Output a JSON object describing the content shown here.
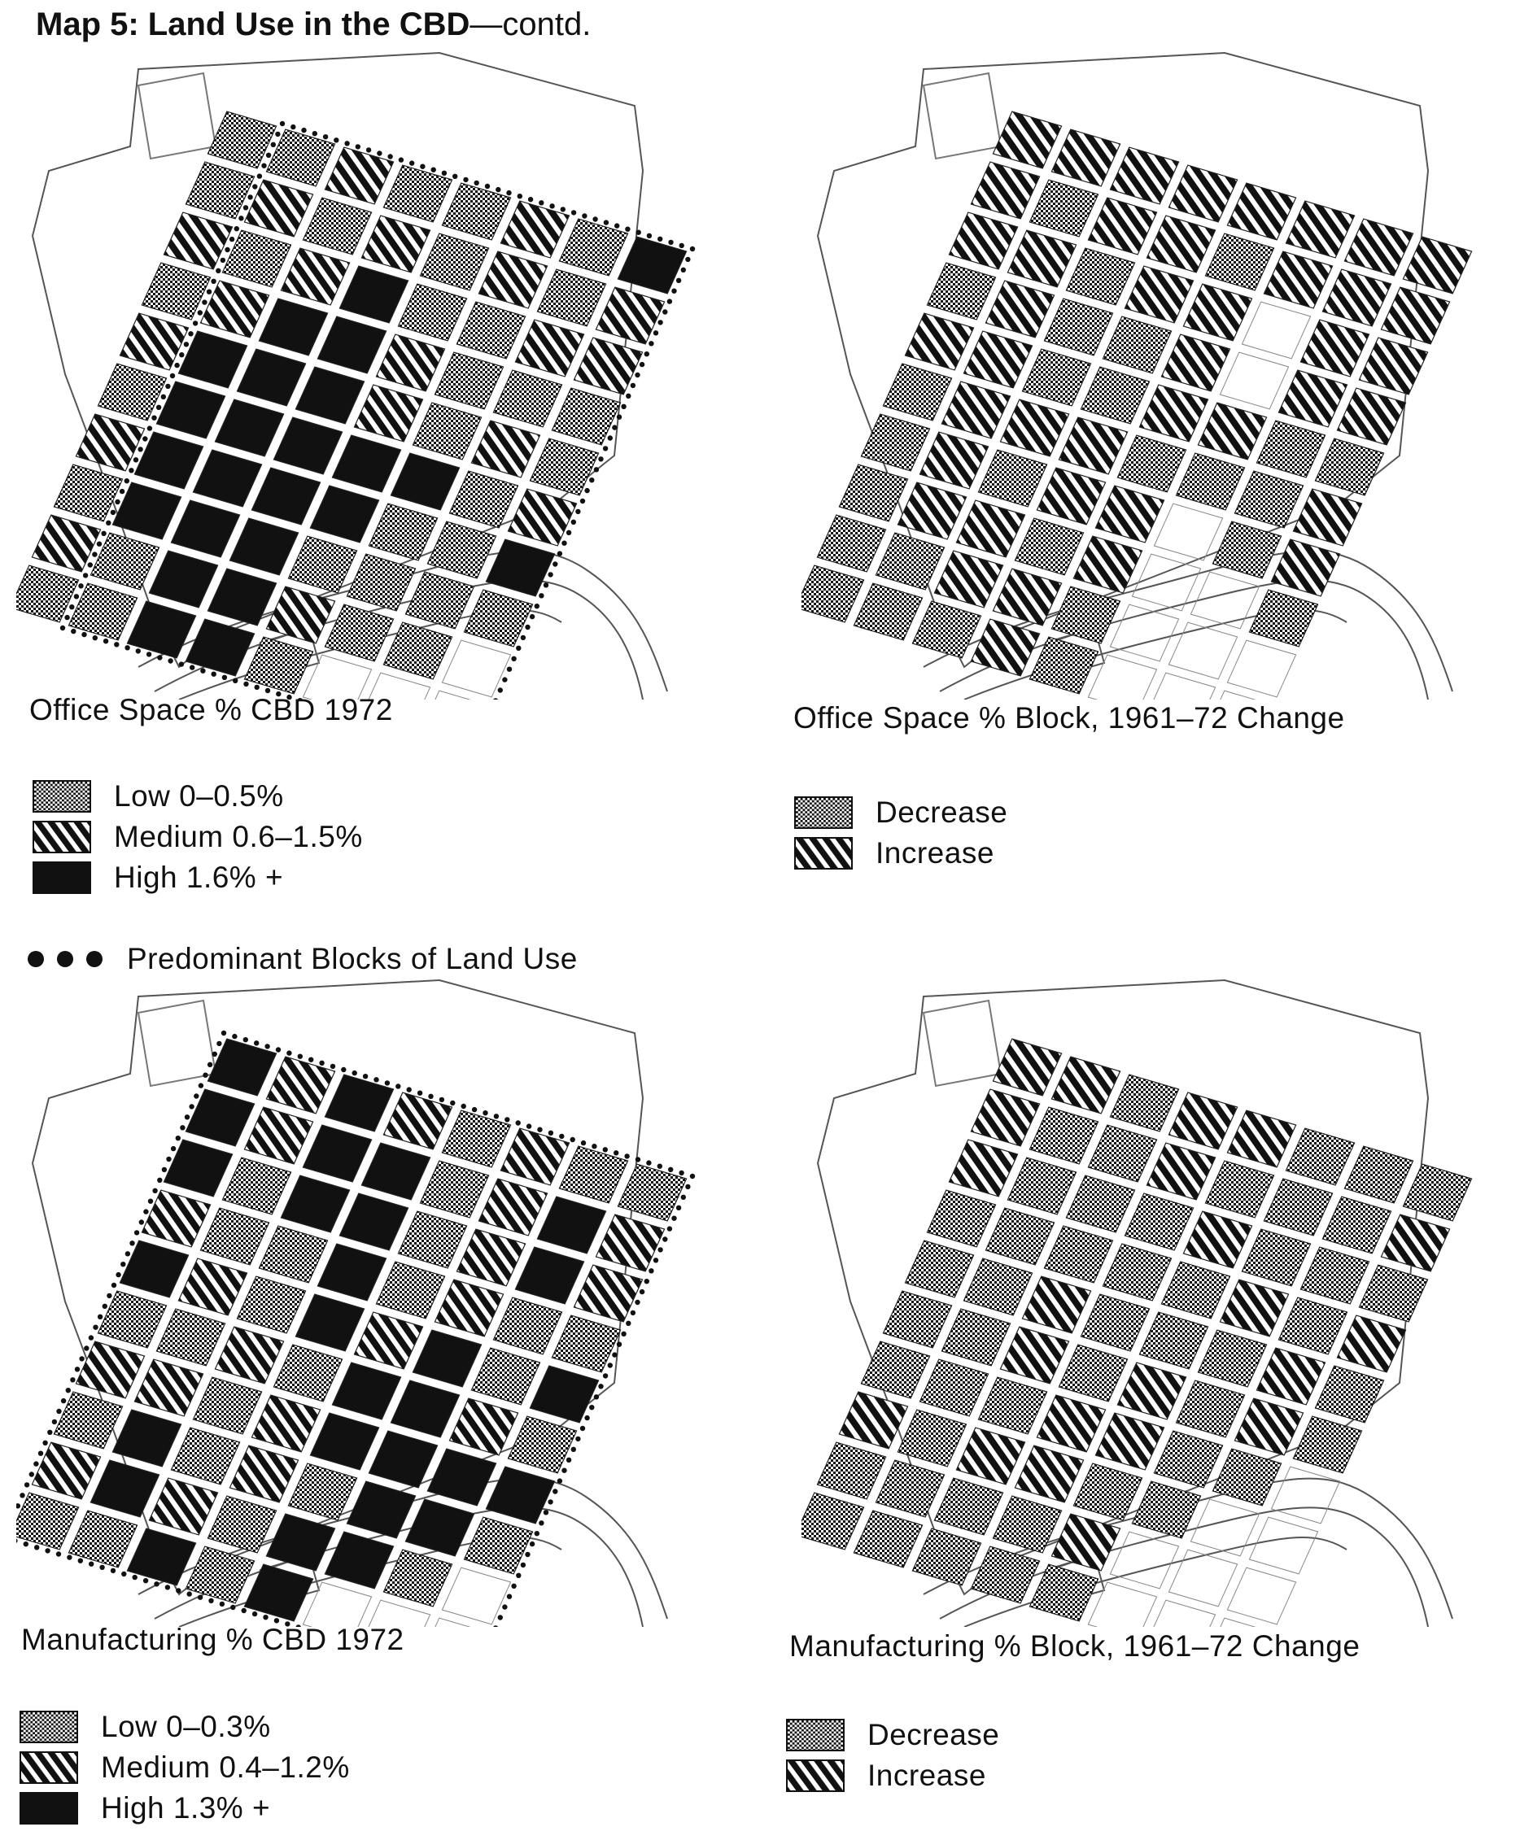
{
  "title": {
    "bold": "Map 5: Land Use in the CBD",
    "rest": "—contd."
  },
  "colors": {
    "ink": "#111111",
    "paper": "#ffffff",
    "line": "#555555"
  },
  "fill_key": {
    "L": "low / decrease (cross-hatch)",
    "M": "medium / increase (diagonal hatch)",
    "H": "high (solid black)",
    "W": "no data (blank)"
  },
  "maps": [
    {
      "id": "office-1972",
      "caption": "Office Space % CBD 1972",
      "legend": [
        {
          "fill": "L",
          "label": "Low 0–0.5%"
        },
        {
          "fill": "M",
          "label": "Medium 0.6–1.5%"
        },
        {
          "fill": "H",
          "label": "High 1.6% +"
        }
      ],
      "grid": [
        "LLMLLMLH",
        "LMLMLMLM",
        "MLMHLLMM",
        "LMHHMLLL",
        "MHHHMLML",
        "LHHHHHLM",
        "MHHHHLLH",
        "LHHHLLLL",
        "MLHHMLLW",
        "LLHHLWWW"
      ]
    },
    {
      "id": "office-change",
      "caption": "Office Space % Block, 1961–72 Change",
      "legend": [
        {
          "fill": "L",
          "label": "Decrease"
        },
        {
          "fill": "M",
          "label": "Increase"
        }
      ],
      "grid": [
        "MMMMMMMM",
        "MLMMLMMM",
        "MMLMMWMM",
        "LMLLMWMM",
        "MMLLMMLL",
        "LMMMLLLM",
        "LMLMMWLM",
        "LMMLMWWL",
        "LLMMLWWW",
        "LLLMLWWW"
      ]
    },
    {
      "id": "manufacturing-1972",
      "caption": "Manufacturing % CBD 1972",
      "legend": [
        {
          "fill": "L",
          "label": "Low 0–0.3%"
        },
        {
          "fill": "M",
          "label": "Medium 0.4–1.2%"
        },
        {
          "fill": "H",
          "label": "High 1.3% +"
        }
      ],
      "grid": [
        "HMHMLMLL",
        "HMHHLMHM",
        "HLHHLMHM",
        "MLLHLMLL",
        "HMLHMHLH",
        "LLMLHHML",
        "MMLMHHHH",
        "LHLMLHHL",
        "MHMLHHLW",
        "LLHLHWWW"
      ]
    },
    {
      "id": "manufacturing-change",
      "caption": "Manufacturing % Block, 1961–72 Change",
      "legend": [
        {
          "fill": "L",
          "label": "Decrease"
        },
        {
          "fill": "M",
          "label": "Increase"
        }
      ],
      "grid": [
        "MMLMMLLL",
        "MLLMLLLM",
        "MLLLMLLL",
        "LLLLLMLM",
        "LLMLLLML",
        "LLMLMLML",
        "LLLMMLLW",
        "MLMMLLWW",
        "LLLLMWWW",
        "LLLLLWWW"
      ]
    }
  ],
  "dots_legend": "Predominant Blocks of Land Use"
}
